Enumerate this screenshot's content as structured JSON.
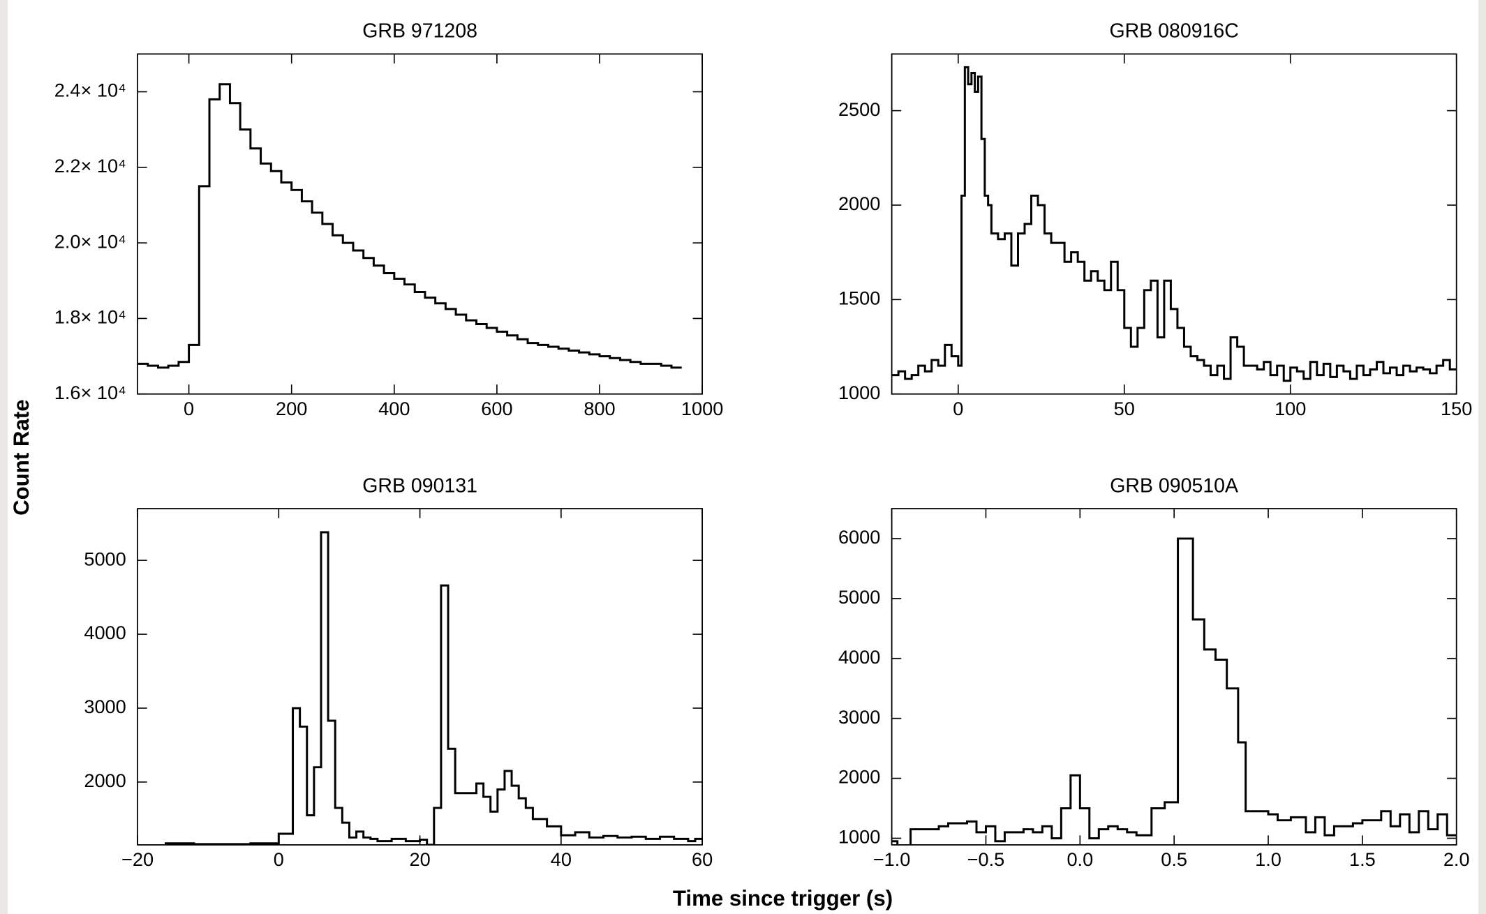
{
  "figure": {
    "x_label": "Time since trigger (s)",
    "y_label": "Count Rate"
  },
  "chart_data": [
    {
      "type": "step",
      "title": "GRB 971208",
      "x": [
        -100,
        -80,
        -60,
        -40,
        -20,
        0,
        20,
        40,
        60,
        80,
        100,
        120,
        140,
        160,
        180,
        200,
        220,
        240,
        260,
        280,
        300,
        320,
        340,
        360,
        380,
        400,
        420,
        440,
        460,
        480,
        500,
        520,
        540,
        560,
        580,
        600,
        620,
        640,
        660,
        680,
        700,
        720,
        740,
        760,
        780,
        800,
        820,
        840,
        860,
        880,
        900,
        920,
        940
      ],
      "values": [
        16800,
        16750,
        16700,
        16750,
        16850,
        17300,
        21500,
        23800,
        24200,
        23700,
        23000,
        22500,
        22100,
        21900,
        21600,
        21400,
        21100,
        20800,
        20500,
        20200,
        20000,
        19800,
        19600,
        19400,
        19200,
        19050,
        18900,
        18700,
        18550,
        18400,
        18250,
        18100,
        17950,
        17850,
        17750,
        17650,
        17550,
        17450,
        17350,
        17300,
        17250,
        17200,
        17150,
        17100,
        17050,
        17000,
        16950,
        16900,
        16850,
        16800,
        16800,
        16750,
        16700
      ],
      "color": "#000000",
      "xlim": [
        -100,
        1000
      ],
      "xticks": [
        0,
        200,
        400,
        600,
        800,
        1000
      ],
      "ylim": [
        16000,
        25000
      ],
      "yticks": [
        {
          "value": 16000,
          "label": "1.6× 10⁴"
        },
        {
          "value": 18000,
          "label": "1.8× 10⁴"
        },
        {
          "value": 20000,
          "label": "2.0× 10⁴"
        },
        {
          "value": 22000,
          "label": "2.2× 10⁴"
        },
        {
          "value": 24000,
          "label": "2.4× 10⁴"
        }
      ]
    },
    {
      "type": "step",
      "title": "GRB 080916C",
      "x": [
        -20,
        -18,
        -16,
        -14,
        -12,
        -10,
        -8,
        -6,
        -4,
        -2,
        0,
        1,
        2,
        3,
        4,
        5,
        6,
        7,
        8,
        9,
        10,
        12,
        14,
        16,
        18,
        20,
        22,
        24,
        26,
        28,
        30,
        32,
        34,
        36,
        38,
        40,
        42,
        44,
        46,
        48,
        50,
        52,
        54,
        56,
        58,
        60,
        62,
        64,
        66,
        68,
        70,
        72,
        74,
        76,
        78,
        80,
        82,
        84,
        86,
        88,
        90,
        92,
        94,
        96,
        98,
        100,
        102,
        104,
        106,
        108,
        110,
        112,
        114,
        116,
        118,
        120,
        122,
        124,
        126,
        128,
        130,
        132,
        134,
        136,
        138,
        140,
        142,
        144,
        146,
        148
      ],
      "values": [
        1100,
        1120,
        1080,
        1100,
        1150,
        1120,
        1180,
        1150,
        1260,
        1200,
        1150,
        2050,
        2730,
        2640,
        2700,
        2600,
        2680,
        2350,
        2050,
        2000,
        1850,
        1820,
        1850,
        1680,
        1850,
        1900,
        2050,
        2000,
        1850,
        1800,
        1800,
        1700,
        1750,
        1700,
        1600,
        1650,
        1600,
        1550,
        1700,
        1550,
        1350,
        1250,
        1350,
        1550,
        1600,
        1300,
        1600,
        1450,
        1350,
        1250,
        1200,
        1180,
        1150,
        1100,
        1150,
        1080,
        1300,
        1250,
        1150,
        1150,
        1130,
        1170,
        1100,
        1150,
        1070,
        1140,
        1120,
        1080,
        1170,
        1100,
        1160,
        1090,
        1150,
        1120,
        1080,
        1150,
        1100,
        1130,
        1170,
        1110,
        1140,
        1100,
        1150,
        1120,
        1140,
        1130,
        1110,
        1150,
        1180,
        1130
      ],
      "color": "#000000",
      "xlim": [
        -20,
        150
      ],
      "xticks": [
        0,
        50,
        100,
        150
      ],
      "ylim": [
        1000,
        2800
      ],
      "yticks": [
        1000,
        1500,
        2000,
        2500
      ]
    },
    {
      "type": "step",
      "title": "GRB 090131",
      "x": [
        -20,
        -16,
        -12,
        -8,
        -4,
        0,
        2,
        3,
        4,
        5,
        6,
        7,
        8,
        9,
        10,
        11,
        12,
        13,
        14,
        16,
        18,
        20,
        21,
        22,
        23,
        24,
        25,
        27,
        28,
        29,
        30,
        31,
        32,
        33,
        34,
        35,
        36,
        38,
        40,
        42,
        44,
        46,
        48,
        50,
        52,
        54,
        56,
        58,
        59
      ],
      "values": [
        1140,
        1170,
        1160,
        1160,
        1170,
        1300,
        3000,
        2750,
        1550,
        2200,
        5380,
        2830,
        1650,
        1450,
        1250,
        1330,
        1250,
        1230,
        1200,
        1230,
        1200,
        1220,
        1150,
        1650,
        4660,
        2450,
        1850,
        1850,
        1980,
        1800,
        1600,
        1900,
        2150,
        1950,
        1780,
        1650,
        1500,
        1400,
        1280,
        1320,
        1250,
        1270,
        1250,
        1260,
        1230,
        1260,
        1230,
        1200,
        1230
      ],
      "color": "#000000",
      "xlim": [
        -20,
        60
      ],
      "xticks": [
        {
          "value": -20,
          "label": "−20"
        },
        0,
        20,
        40,
        60
      ],
      "ylim": [
        1150,
        5700
      ],
      "yticks": [
        2000,
        3000,
        4000,
        5000
      ]
    },
    {
      "type": "step",
      "title": "GRB 090510A",
      "x": [
        -1.0,
        -0.97,
        -0.9,
        -0.8,
        -0.75,
        -0.7,
        -0.6,
        -0.55,
        -0.5,
        -0.45,
        -0.4,
        -0.35,
        -0.3,
        -0.25,
        -0.2,
        -0.15,
        -0.1,
        -0.05,
        0.0,
        0.05,
        0.1,
        0.15,
        0.2,
        0.25,
        0.3,
        0.38,
        0.45,
        0.52,
        0.6,
        0.66,
        0.72,
        0.78,
        0.84,
        0.88,
        1.0,
        1.05,
        1.12,
        1.2,
        1.25,
        1.3,
        1.35,
        1.45,
        1.5,
        1.6,
        1.65,
        1.7,
        1.75,
        1.8,
        1.85,
        1.9,
        1.95
      ],
      "values": [
        950,
        850,
        1150,
        1150,
        1200,
        1250,
        1280,
        1100,
        1200,
        950,
        1100,
        1100,
        1150,
        1100,
        1200,
        1000,
        1500,
        2050,
        1500,
        1000,
        1150,
        1200,
        1150,
        1100,
        1050,
        1500,
        1600,
        6000,
        4650,
        4150,
        3980,
        3500,
        2600,
        1450,
        1400,
        1300,
        1350,
        1100,
        1350,
        1050,
        1200,
        1250,
        1300,
        1450,
        1200,
        1400,
        1100,
        1450,
        1150,
        1400,
        1050
      ],
      "color": "#000000",
      "xlim": [
        -1,
        2
      ],
      "xticks": [
        {
          "value": -1,
          "label": "−1.0"
        },
        {
          "value": -0.5,
          "label": "−0.5"
        },
        {
          "value": 0,
          "label": "0.0"
        },
        0.5,
        {
          "value": 1,
          "label": "1.0"
        },
        1.5,
        {
          "value": 2,
          "label": "2.0"
        }
      ],
      "ylim": [
        890,
        6500
      ],
      "yticks": [
        1000,
        2000,
        3000,
        4000,
        5000,
        6000
      ]
    }
  ]
}
